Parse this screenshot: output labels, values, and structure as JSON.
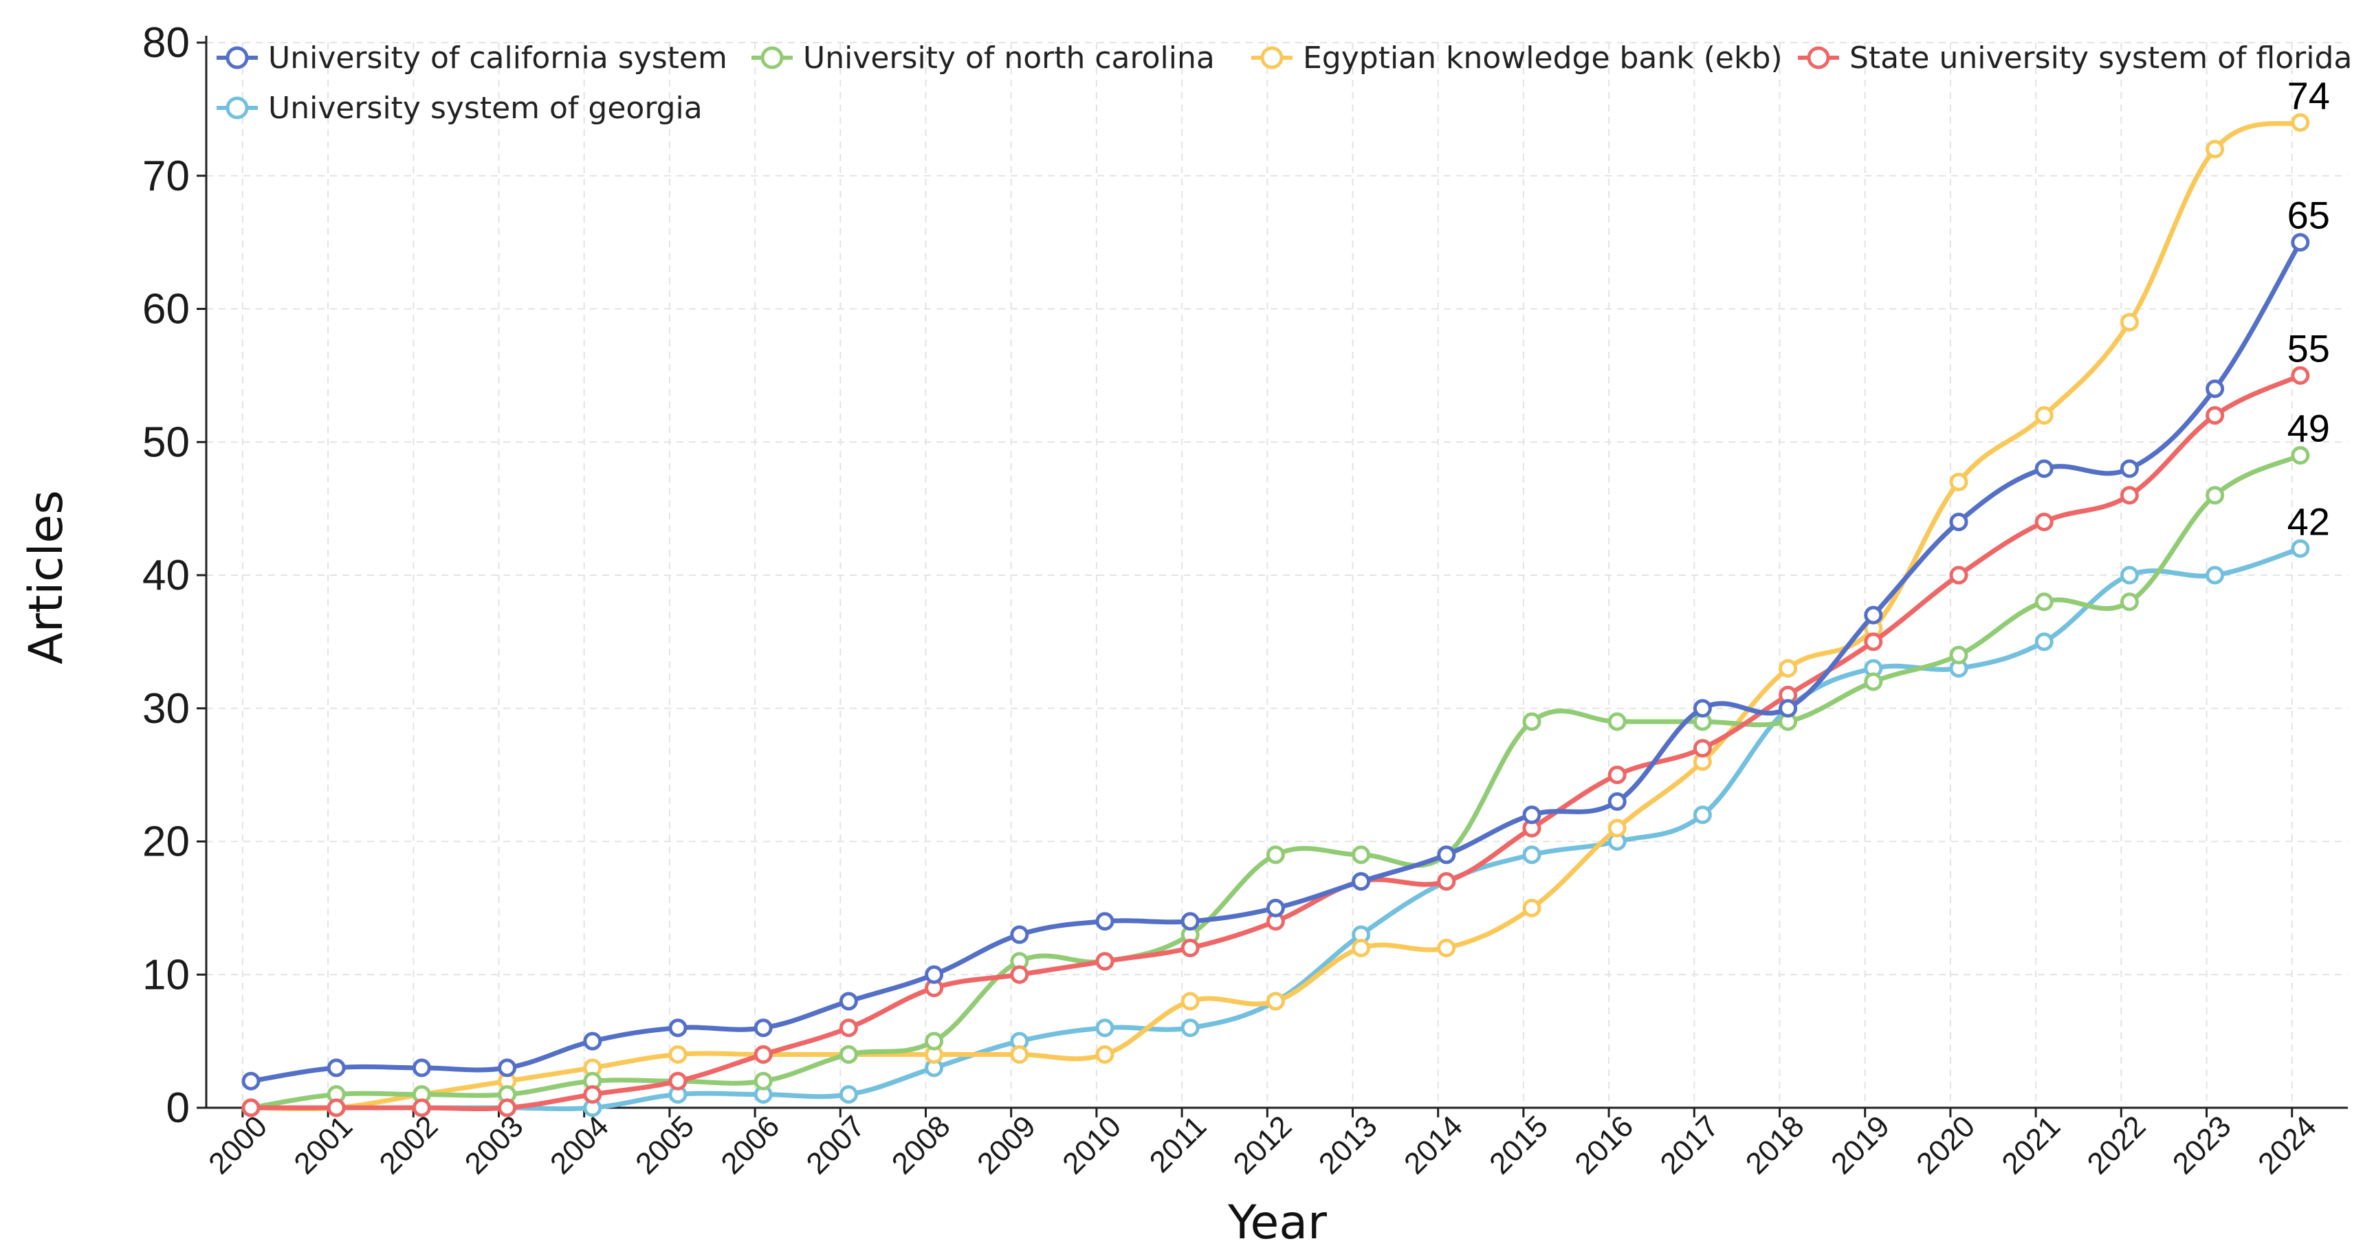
{
  "chart_data": {
    "type": "line",
    "title": "",
    "xlabel": "Year",
    "ylabel": "Articles",
    "ylim": [
      0,
      80
    ],
    "yticks": [
      0,
      10,
      20,
      30,
      40,
      50,
      60,
      70,
      80
    ],
    "grid": true,
    "legend_position": "top",
    "categories": [
      "2000",
      "2001",
      "2002",
      "2003",
      "2004",
      "2005",
      "2006",
      "2007",
      "2008",
      "2009",
      "2010",
      "2011",
      "2012",
      "2013",
      "2014",
      "2015",
      "2016",
      "2017",
      "2018",
      "2019",
      "2020",
      "2021",
      "2022",
      "2023",
      "2024"
    ],
    "series": [
      {
        "name": "University of california system",
        "color": "#5470c6",
        "values": [
          2,
          3,
          3,
          3,
          5,
          6,
          6,
          8,
          10,
          13,
          14,
          14,
          15,
          17,
          19,
          22,
          23,
          30,
          30,
          37,
          44,
          48,
          48,
          54,
          65
        ]
      },
      {
        "name": "University of north carolina",
        "color": "#91cc75",
        "values": [
          0,
          1,
          1,
          1,
          2,
          2,
          2,
          4,
          5,
          11,
          11,
          13,
          19,
          19,
          19,
          29,
          29,
          29,
          29,
          32,
          34,
          38,
          38,
          46,
          49
        ]
      },
      {
        "name": "Egyptian knowledge bank (ekb)",
        "color": "#fac858",
        "values": [
          0,
          0,
          1,
          2,
          3,
          4,
          4,
          4,
          4,
          4,
          4,
          8,
          8,
          12,
          12,
          15,
          21,
          26,
          33,
          36,
          47,
          52,
          59,
          72,
          74
        ]
      },
      {
        "name": "State university system of florida",
        "color": "#ee6666",
        "values": [
          0,
          0,
          0,
          0,
          1,
          2,
          4,
          6,
          9,
          10,
          11,
          12,
          14,
          17,
          17,
          21,
          25,
          27,
          31,
          35,
          40,
          44,
          46,
          52,
          55
        ]
      },
      {
        "name": "University system of georgia",
        "color": "#73c0de",
        "values": [
          0,
          0,
          0,
          0,
          0,
          1,
          1,
          1,
          3,
          5,
          6,
          6,
          8,
          13,
          17,
          19,
          20,
          22,
          30,
          33,
          33,
          35,
          40,
          40,
          42
        ]
      }
    ],
    "end_labels": [
      "74",
      "65",
      "55",
      "49",
      "42"
    ]
  }
}
